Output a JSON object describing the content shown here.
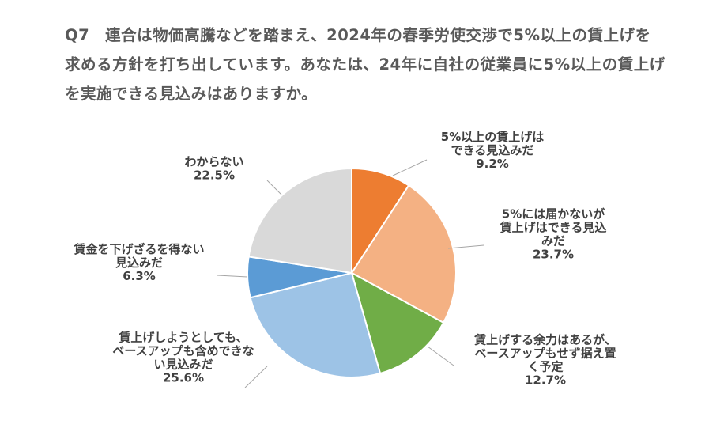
{
  "question": "Q7　連合は物価高騰などを踏まえ、2024年の春季労使交渉で5%以上の賃上げを求める方針を打ち出しています。あなたは、24年に自社の従業員に5%以上の賃上げを実施できる見込みはありますか。",
  "chart_data": {
    "type": "pie",
    "title": "",
    "start_angle_deg": 0,
    "direction": "clockwise",
    "slices": [
      {
        "label_lines": [
          "5%以上の賃上げは",
          "できる見込みだ"
        ],
        "value": 9.2,
        "value_text": "9.2%",
        "color": "#ED7D31"
      },
      {
        "label_lines": [
          "5%には届かないが",
          "賃上げはできる見込",
          "みだ"
        ],
        "value": 23.7,
        "value_text": "23.7%",
        "color": "#F4B183"
      },
      {
        "label_lines": [
          "賃上げする余力はあるが、",
          "ベースアップもせず据え置",
          "く予定"
        ],
        "value": 12.7,
        "value_text": "12.7%",
        "color": "#70AD47"
      },
      {
        "label_lines": [
          "賃上げしようとしても、",
          "ベースアップも含めできな",
          "い見込みだ"
        ],
        "value": 25.6,
        "value_text": "25.6%",
        "color": "#9DC3E6"
      },
      {
        "label_lines": [
          "賃金を下げざるを得ない",
          "見込みだ"
        ],
        "value": 6.3,
        "value_text": "6.3%",
        "color": "#5B9BD5"
      },
      {
        "label_lines": [
          "わからない"
        ],
        "value": 22.5,
        "value_text": "22.5%",
        "color": "#D9D9D9"
      }
    ]
  }
}
